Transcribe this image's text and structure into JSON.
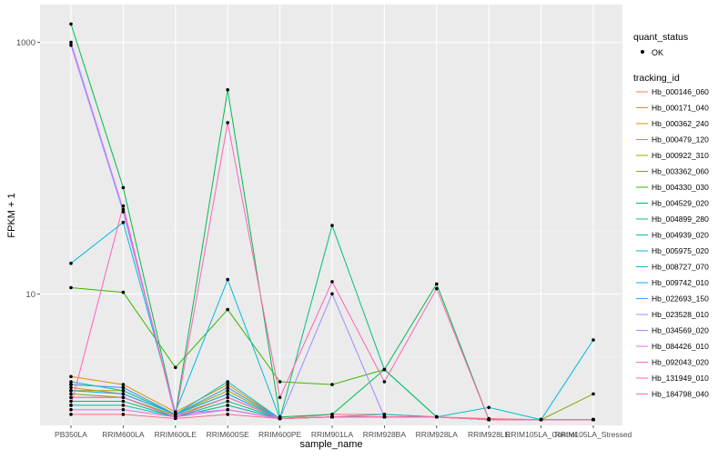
{
  "chart_data": {
    "type": "line",
    "xlabel": "sample_name",
    "ylabel": "FPKM + 1",
    "y_scale": "log10",
    "ylim": [
      0.9,
      2000
    ],
    "yticks": [
      {
        "value": 10,
        "label": "10"
      },
      {
        "value": 1000,
        "label": "1000"
      }
    ],
    "grid": true,
    "legend_position": "right",
    "categories": [
      "PB350LA",
      "RRIM600LA",
      "RRIM600LE",
      "RRIM600SE",
      "RRIM600PE",
      "RRIM901LA",
      "RRIM928BA",
      "RRIM928LA",
      "RRIM928LE",
      "RRIM105LA_Control",
      "RRIM105LA_Stressed"
    ],
    "legend_quant": {
      "title": "quant_status",
      "label": "OK"
    },
    "legend_tracking": {
      "title": "tracking_id"
    },
    "series": [
      {
        "name": "Hb_000146_060",
        "color": "#F8766D",
        "values": [
          1.5,
          1.5,
          1.05,
          1.3,
          1.02,
          1.1,
          1.1,
          1.05,
          1.02,
          1.0,
          1.0
        ]
      },
      {
        "name": "Hb_000171_040",
        "color": "#EA8331",
        "values": [
          1.8,
          1.6,
          1.1,
          1.6,
          1.02,
          1.05,
          1.05,
          1.05,
          1.0,
          1.0,
          1.0
        ]
      },
      {
        "name": "Hb_000362_240",
        "color": "#D89000",
        "values": [
          2.2,
          1.9,
          1.15,
          1.9,
          1.02,
          1.05,
          1.05,
          1.05,
          1.0,
          1.0,
          1.0
        ]
      },
      {
        "name": "Hb_000479_120",
        "color": "#C09B00",
        "values": [
          1.9,
          1.8,
          1.1,
          1.8,
          1.02,
          1.05,
          1.05,
          1.05,
          1.0,
          1.0,
          1.0
        ]
      },
      {
        "name": "Hb_000922_310",
        "color": "#A3A500",
        "values": [
          1.7,
          1.7,
          1.1,
          1.7,
          1.02,
          1.05,
          1.05,
          1.05,
          1.0,
          1.0,
          1.0
        ]
      },
      {
        "name": "Hb_003362_060",
        "color": "#7CAE00",
        "values": [
          1.6,
          1.5,
          1.08,
          1.5,
          1.02,
          1.05,
          1.05,
          1.05,
          1.0,
          1.0,
          1.6
        ]
      },
      {
        "name": "Hb_004330_030",
        "color": "#39B600",
        "values": [
          11.2,
          10.3,
          2.6,
          7.5,
          2.0,
          1.9,
          2.5,
          1.05,
          1.0,
          1.0,
          1.0
        ]
      },
      {
        "name": "Hb_004529_020",
        "color": "#00BB4E",
        "values": [
          1400,
          70,
          1.1,
          420,
          1.05,
          1.1,
          2.5,
          12,
          1.0,
          1.0,
          1.0
        ]
      },
      {
        "name": "Hb_004899_280",
        "color": "#00BF7D",
        "values": [
          1.4,
          1.4,
          1.05,
          1.4,
          1.02,
          35,
          2.5,
          1.05,
          1.0,
          1.0,
          1.0
        ]
      },
      {
        "name": "Hb_004939_020",
        "color": "#00C1A3",
        "values": [
          1.3,
          1.3,
          1.05,
          1.3,
          1.02,
          1.05,
          1.05,
          1.05,
          1.0,
          1.0,
          1.0
        ]
      },
      {
        "name": "Hb_005975_020",
        "color": "#00BFC4",
        "values": [
          2.0,
          1.7,
          1.1,
          2.0,
          1.02,
          1.05,
          1.1,
          1.05,
          1.25,
          1.0,
          1.0
        ]
      },
      {
        "name": "Hb_008727_070",
        "color": "#00BAE0",
        "values": [
          17.5,
          37,
          1.15,
          13,
          1.02,
          1.05,
          1.05,
          1.05,
          1.0,
          1.0,
          4.3
        ]
      },
      {
        "name": "Hb_009742_010",
        "color": "#00B0F6",
        "values": [
          1.7,
          1.6,
          1.1,
          1.6,
          1.02,
          1.05,
          1.05,
          1.05,
          1.0,
          1.0,
          1.0
        ]
      },
      {
        "name": "Hb_022693_150",
        "color": "#35A2FF",
        "values": [
          1.9,
          1.8,
          1.1,
          1.8,
          1.02,
          1.05,
          1.05,
          1.05,
          1.0,
          1.0,
          1.0
        ]
      },
      {
        "name": "Hb_023528_010",
        "color": "#9590FF",
        "values": [
          950,
          45,
          1.1,
          1.2,
          1.02,
          10,
          1.05,
          1.05,
          1.0,
          1.0,
          1.0
        ]
      },
      {
        "name": "Hb_034569_020",
        "color": "#C77CFF",
        "values": [
          1000,
          47,
          1.1,
          1.2,
          1.02,
          1.05,
          1.05,
          1.05,
          1.0,
          1.0,
          1.0
        ]
      },
      {
        "name": "Hb_084426_010",
        "color": "#E76BF3",
        "values": [
          1.2,
          1.2,
          1.05,
          1.2,
          1.02,
          1.05,
          1.05,
          1.05,
          1.0,
          1.0,
          1.0
        ]
      },
      {
        "name": "Hb_092043_020",
        "color": "#FA62DB",
        "values": [
          1.5,
          1.5,
          1.05,
          1.5,
          1.02,
          1.05,
          1.05,
          1.05,
          1.0,
          1.0,
          1.0
        ]
      },
      {
        "name": "Hb_131949_010",
        "color": "#FF62BC",
        "values": [
          1.3,
          50,
          1.05,
          230,
          1.5,
          12.5,
          2.0,
          11,
          1.0,
          1.0,
          1.0
        ]
      },
      {
        "name": "Hb_184798_040",
        "color": "#FF6C91",
        "values": [
          1.1,
          1.1,
          1.02,
          1.1,
          1.02,
          1.05,
          1.05,
          1.05,
          1.0,
          1.0,
          1.0
        ]
      }
    ]
  }
}
